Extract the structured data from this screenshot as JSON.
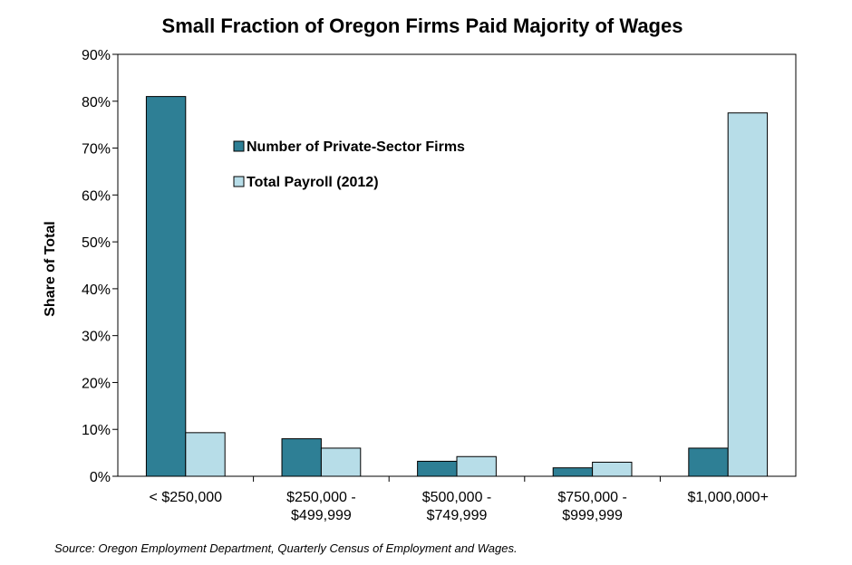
{
  "chart_data": {
    "type": "bar",
    "title": "Small Fraction of Oregon Firms Paid Majority of Wages",
    "ylabel": "Share of Total",
    "xlabel": "",
    "ylim": [
      0,
      90
    ],
    "y_ticks": [
      "0%",
      "10%",
      "20%",
      "30%",
      "40%",
      "50%",
      "60%",
      "70%",
      "80%",
      "90%"
    ],
    "grid": false,
    "legend_position": "upper-left inside plot",
    "categories": [
      [
        "< $250,000"
      ],
      [
        "$250,000 -",
        "$499,999"
      ],
      [
        "$500,000 -",
        "$749,999"
      ],
      [
        "$750,000 -",
        "$999,999"
      ],
      [
        "$1,000,000+"
      ]
    ],
    "series": [
      {
        "name": "Number of Private-Sector Firms",
        "color": "#2e7f95",
        "values": [
          81,
          8,
          3.2,
          1.8,
          6
        ]
      },
      {
        "name": "Total Payroll (2012)",
        "color": "#b7dde8",
        "values": [
          9.3,
          6,
          4.2,
          3,
          77.5
        ]
      }
    ]
  },
  "source": "Source: Oregon Employment Department, Quarterly Census of Employment and Wages."
}
